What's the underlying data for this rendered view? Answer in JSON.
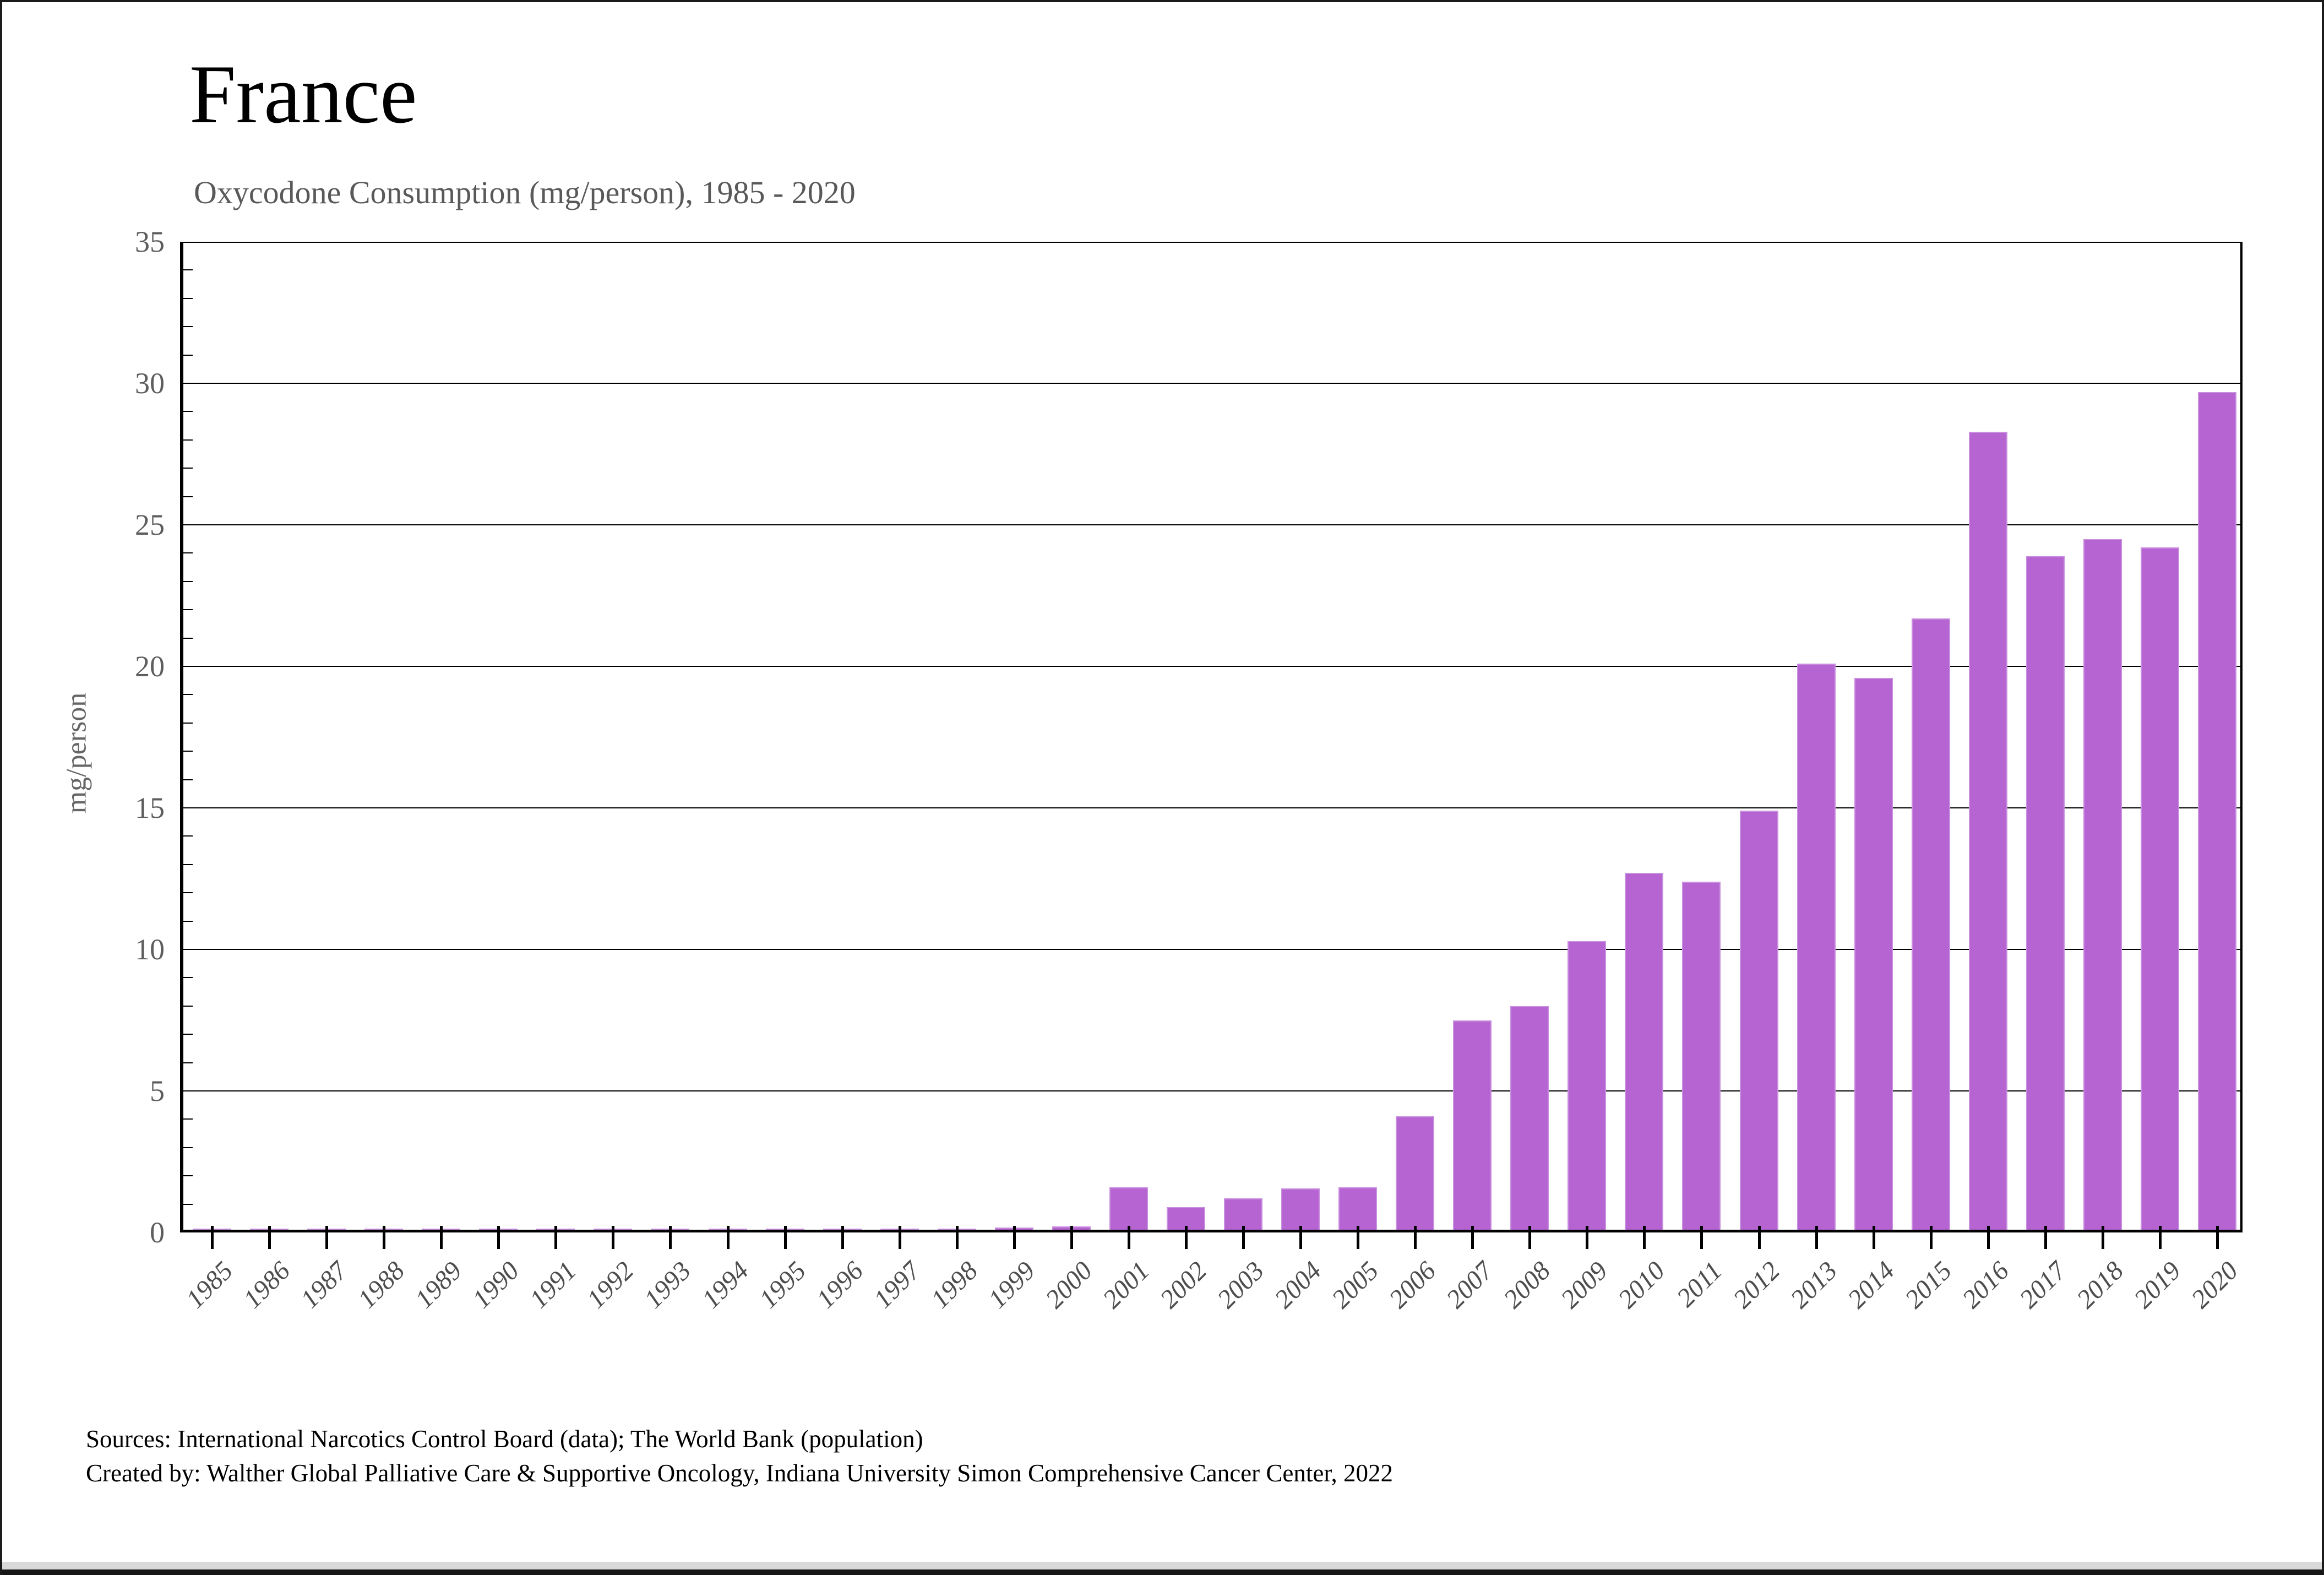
{
  "header": {
    "title": "France",
    "subtitle": "Oxycodone Consumption (mg/person), 1985 - 2020"
  },
  "footer": {
    "line1": "Sources: International Narcotics Control Board (data); The World Bank (population)",
    "line2": "Created by: Walther Global Palliative Care & Supportive Oncology, Indiana University Simon Comprehensive Cancer Center, 2022"
  },
  "chart_data": {
    "type": "bar",
    "title": "France",
    "subtitle": "Oxycodone Consumption (mg/person), 1985 - 2020",
    "xlabel": "",
    "ylabel": "mg/person",
    "ylim": [
      0,
      35
    ],
    "yticks": [
      0,
      5,
      10,
      15,
      20,
      25,
      30,
      35
    ],
    "minor_tick_interval": 1,
    "grid": "horizontal major gridlines on, full plot box",
    "legend_position": "none",
    "bar_color": "#b764d3",
    "bar_edge_color": "#c98fdf",
    "categories": [
      1985,
      1986,
      1987,
      1988,
      1989,
      1990,
      1991,
      1992,
      1993,
      1994,
      1995,
      1996,
      1997,
      1998,
      1999,
      2000,
      2001,
      2002,
      2003,
      2004,
      2005,
      2006,
      2007,
      2008,
      2009,
      2010,
      2011,
      2012,
      2013,
      2014,
      2015,
      2016,
      2017,
      2018,
      2019,
      2020
    ],
    "values": [
      0.04,
      0.04,
      0.04,
      0.04,
      0.03,
      0.02,
      0.02,
      0.02,
      0.02,
      0.02,
      0.03,
      0.04,
      0.04,
      0.04,
      0.07,
      0.12,
      1.5,
      0.8,
      1.1,
      1.45,
      1.5,
      4.0,
      7.4,
      7.9,
      10.2,
      12.6,
      12.3,
      14.8,
      20.0,
      19.5,
      21.6,
      28.2,
      23.8,
      24.4,
      24.1,
      29.6
    ]
  }
}
